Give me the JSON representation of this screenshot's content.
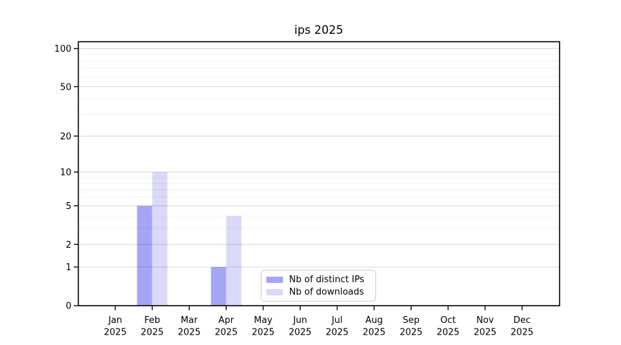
{
  "chart_data": {
    "type": "bar",
    "title": "ips 2025",
    "x_categories": [
      "Jan",
      "Feb",
      "Mar",
      "Apr",
      "May",
      "Jun",
      "Jul",
      "Aug",
      "Sep",
      "Oct",
      "Nov",
      "Dec"
    ],
    "x_year_label": "2025",
    "series": [
      {
        "name": "Nb of distinct IPs",
        "color": "#a5a5f5",
        "values": [
          0,
          5,
          0,
          1,
          0,
          0,
          0,
          0,
          0,
          0,
          0,
          0
        ]
      },
      {
        "name": "Nb of downloads",
        "color": "#dadaf8",
        "values": [
          0,
          10,
          0,
          4,
          0,
          0,
          0,
          0,
          0,
          0,
          0,
          0
        ]
      }
    ],
    "y_axis": {
      "scale": "log10(1+value)",
      "major_ticks": [
        0,
        1,
        2,
        5,
        10,
        20,
        50,
        100
      ],
      "minor_ticks": [
        3,
        4,
        6,
        7,
        8,
        9,
        30,
        40,
        60,
        70,
        80,
        90
      ],
      "range": [
        0,
        113
      ]
    },
    "grid": {
      "major": true,
      "minor": true
    },
    "legend_position": "lower-center"
  },
  "colors": {
    "background": "#ffffff",
    "axis": "#000000",
    "tick_label": "#000000",
    "grid_major_on_white": "#d9d9d9",
    "grid_minor_on_white": "#f0f0f0",
    "legend_border": "#cccccc",
    "legend_background": "#ffffff"
  }
}
